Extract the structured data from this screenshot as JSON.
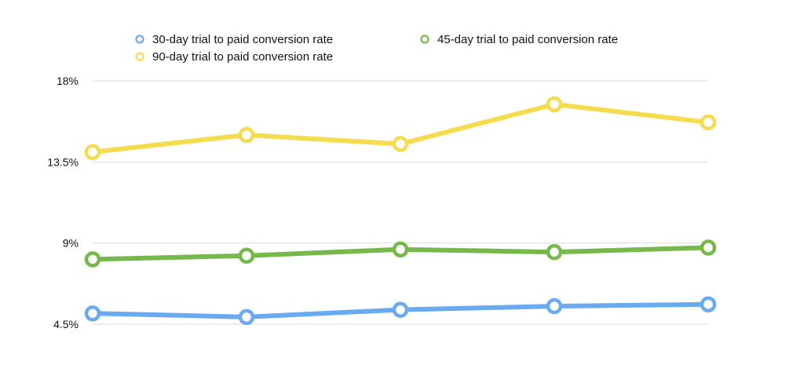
{
  "chart_data": {
    "type": "line",
    "title": "",
    "xlabel": "",
    "ylabel": "",
    "x": [
      1,
      2,
      3,
      4,
      5
    ],
    "ylim": [
      4.5,
      18
    ],
    "yticks": [
      {
        "value": 18,
        "label": "18%"
      },
      {
        "value": 13.5,
        "label": "13.5%"
      },
      {
        "value": 9,
        "label": "9%"
      },
      {
        "value": 4.5,
        "label": "4.5%"
      }
    ],
    "grid": true,
    "legend": "top",
    "series": [
      {
        "name": "30-day trial to paid conversion rate",
        "color": "#6aaaf0",
        "values": [
          5.1,
          4.9,
          5.3,
          5.5,
          5.6
        ]
      },
      {
        "name": "45-day trial to paid conversion rate",
        "color": "#77b84a",
        "values": [
          8.1,
          8.3,
          8.65,
          8.5,
          8.75
        ]
      },
      {
        "name": "90-day trial to paid conversion rate",
        "color": "#f5dc4f",
        "values": [
          14.05,
          15.0,
          14.5,
          16.7,
          15.7
        ]
      }
    ]
  }
}
